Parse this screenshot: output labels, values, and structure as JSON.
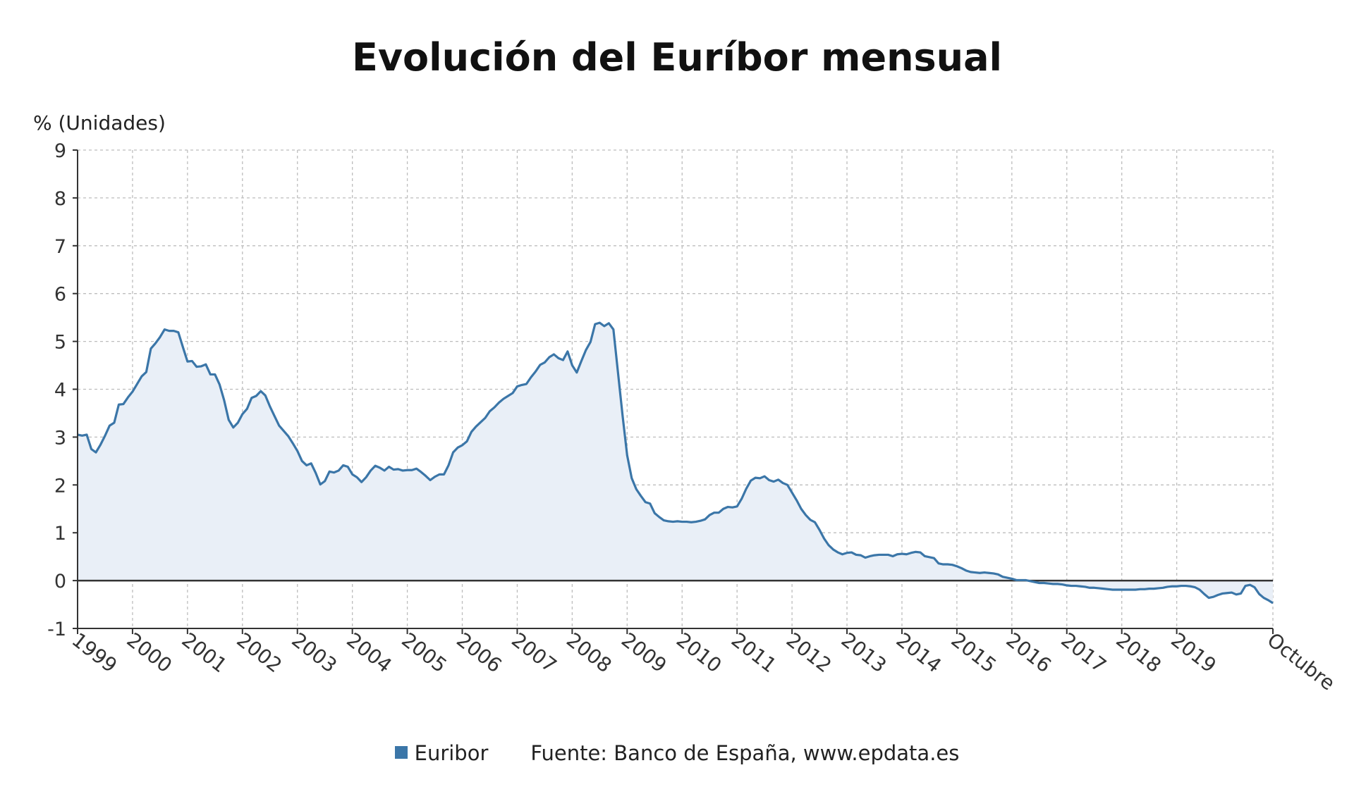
{
  "chart_data": {
    "type": "area",
    "title": "Evolución del Euríbor mensual",
    "ylabel": "% (Unidades)",
    "xlabel": "",
    "ylim": [
      -1,
      9
    ],
    "yticks": [
      "9",
      "8",
      "7",
      "6",
      "5",
      "4",
      "3",
      "2",
      "1",
      "0",
      "-1"
    ],
    "xticks": [
      "1999",
      "2000",
      "2001",
      "2002",
      "2003",
      "2004",
      "2005",
      "2006",
      "2007",
      "2008",
      "2009",
      "2010",
      "2011",
      "2012",
      "2013",
      "2014",
      "2015",
      "2016",
      "2017",
      "2018",
      "2019",
      "Octubre"
    ],
    "xlim": [
      "1999-01",
      "2020-10"
    ],
    "grid": true,
    "legend_position": "bottom",
    "source": "Fuente: Banco de España, www.epdata.es",
    "colors": {
      "line": "#3b76a8",
      "fill": "#e9eff7"
    },
    "series": [
      {
        "name": "Euribor",
        "x": [
          "1999-01",
          "1999-02",
          "1999-03",
          "1999-04",
          "1999-05",
          "1999-06",
          "1999-07",
          "1999-08",
          "1999-09",
          "1999-10",
          "1999-11",
          "1999-12",
          "2000-01",
          "2000-02",
          "2000-03",
          "2000-04",
          "2000-05",
          "2000-06",
          "2000-07",
          "2000-08",
          "2000-09",
          "2000-10",
          "2000-11",
          "2000-12",
          "2001-01",
          "2001-02",
          "2001-03",
          "2001-04",
          "2001-05",
          "2001-06",
          "2001-07",
          "2001-08",
          "2001-09",
          "2001-10",
          "2001-11",
          "2001-12",
          "2002-01",
          "2002-02",
          "2002-03",
          "2002-04",
          "2002-05",
          "2002-06",
          "2002-07",
          "2002-08",
          "2002-09",
          "2002-10",
          "2002-11",
          "2002-12",
          "2003-01",
          "2003-02",
          "2003-03",
          "2003-04",
          "2003-05",
          "2003-06",
          "2003-07",
          "2003-08",
          "2003-09",
          "2003-10",
          "2003-11",
          "2003-12",
          "2004-01",
          "2004-02",
          "2004-03",
          "2004-04",
          "2004-05",
          "2004-06",
          "2004-07",
          "2004-08",
          "2004-09",
          "2004-10",
          "2004-11",
          "2004-12",
          "2005-01",
          "2005-02",
          "2005-03",
          "2005-04",
          "2005-05",
          "2005-06",
          "2005-07",
          "2005-08",
          "2005-09",
          "2005-10",
          "2005-11",
          "2005-12",
          "2006-01",
          "2006-02",
          "2006-03",
          "2006-04",
          "2006-05",
          "2006-06",
          "2006-07",
          "2006-08",
          "2006-09",
          "2006-10",
          "2006-11",
          "2006-12",
          "2007-01",
          "2007-02",
          "2007-03",
          "2007-04",
          "2007-05",
          "2007-06",
          "2007-07",
          "2007-08",
          "2007-09",
          "2007-10",
          "2007-11",
          "2007-12",
          "2008-01",
          "2008-02",
          "2008-03",
          "2008-04",
          "2008-05",
          "2008-06",
          "2008-07",
          "2008-08",
          "2008-09",
          "2008-10",
          "2008-11",
          "2008-12",
          "2009-01",
          "2009-02",
          "2009-03",
          "2009-04",
          "2009-05",
          "2009-06",
          "2009-07",
          "2009-08",
          "2009-09",
          "2009-10",
          "2009-11",
          "2009-12",
          "2010-01",
          "2010-02",
          "2010-03",
          "2010-04",
          "2010-05",
          "2010-06",
          "2010-07",
          "2010-08",
          "2010-09",
          "2010-10",
          "2010-11",
          "2010-12",
          "2011-01",
          "2011-02",
          "2011-03",
          "2011-04",
          "2011-05",
          "2011-06",
          "2011-07",
          "2011-08",
          "2011-09",
          "2011-10",
          "2011-11",
          "2011-12",
          "2012-01",
          "2012-02",
          "2012-03",
          "2012-04",
          "2012-05",
          "2012-06",
          "2012-07",
          "2012-08",
          "2012-09",
          "2012-10",
          "2012-11",
          "2012-12",
          "2013-01",
          "2013-02",
          "2013-03",
          "2013-04",
          "2013-05",
          "2013-06",
          "2013-07",
          "2013-08",
          "2013-09",
          "2013-10",
          "2013-11",
          "2013-12",
          "2014-01",
          "2014-02",
          "2014-03",
          "2014-04",
          "2014-05",
          "2014-06",
          "2014-07",
          "2014-08",
          "2014-09",
          "2014-10",
          "2014-11",
          "2014-12",
          "2015-01",
          "2015-02",
          "2015-03",
          "2015-04",
          "2015-05",
          "2015-06",
          "2015-07",
          "2015-08",
          "2015-09",
          "2015-10",
          "2015-11",
          "2015-12",
          "2016-01",
          "2016-02",
          "2016-03",
          "2016-04",
          "2016-05",
          "2016-06",
          "2016-07",
          "2016-08",
          "2016-09",
          "2016-10",
          "2016-11",
          "2016-12",
          "2017-01",
          "2017-02",
          "2017-03",
          "2017-04",
          "2017-05",
          "2017-06",
          "2017-07",
          "2017-08",
          "2017-09",
          "2017-10",
          "2017-11",
          "2017-12",
          "2018-01",
          "2018-02",
          "2018-03",
          "2018-04",
          "2018-05",
          "2018-06",
          "2018-07",
          "2018-08",
          "2018-09",
          "2018-10",
          "2018-11",
          "2018-12",
          "2019-01",
          "2019-02",
          "2019-03",
          "2019-04",
          "2019-05",
          "2019-06",
          "2019-07",
          "2019-08",
          "2019-09",
          "2019-10",
          "2019-11",
          "2019-12",
          "2020-01",
          "2020-02",
          "2020-03",
          "2020-04",
          "2020-05",
          "2020-06",
          "2020-07",
          "2020-08",
          "2020-09",
          "2020-10"
        ],
        "values": [
          3.05,
          3.03,
          3.05,
          2.75,
          2.68,
          2.84,
          3.03,
          3.24,
          3.3,
          3.68,
          3.69,
          3.83,
          3.95,
          4.11,
          4.27,
          4.36,
          4.85,
          4.96,
          5.09,
          5.25,
          5.22,
          5.22,
          5.19,
          4.88,
          4.58,
          4.59,
          4.47,
          4.48,
          4.52,
          4.31,
          4.31,
          4.1,
          3.77,
          3.36,
          3.2,
          3.3,
          3.48,
          3.59,
          3.82,
          3.86,
          3.96,
          3.87,
          3.64,
          3.44,
          3.24,
          3.13,
          3.02,
          2.87,
          2.71,
          2.5,
          2.41,
          2.45,
          2.25,
          2.01,
          2.08,
          2.28,
          2.26,
          2.3,
          2.41,
          2.38,
          2.22,
          2.16,
          2.06,
          2.16,
          2.3,
          2.4,
          2.36,
          2.3,
          2.38,
          2.32,
          2.33,
          2.3,
          2.31,
          2.31,
          2.34,
          2.27,
          2.19,
          2.1,
          2.17,
          2.22,
          2.22,
          2.41,
          2.68,
          2.78,
          2.83,
          2.91,
          3.11,
          3.22,
          3.31,
          3.4,
          3.54,
          3.62,
          3.72,
          3.8,
          3.86,
          3.92,
          4.06,
          4.09,
          4.11,
          4.25,
          4.37,
          4.51,
          4.56,
          4.67,
          4.73,
          4.65,
          4.61,
          4.79,
          4.5,
          4.35,
          4.59,
          4.82,
          4.99,
          5.36,
          5.39,
          5.32,
          5.38,
          5.25,
          4.35,
          3.45,
          2.62,
          2.14,
          1.91,
          1.77,
          1.64,
          1.61,
          1.41,
          1.33,
          1.26,
          1.24,
          1.23,
          1.24,
          1.23,
          1.23,
          1.22,
          1.23,
          1.25,
          1.28,
          1.37,
          1.42,
          1.42,
          1.5,
          1.54,
          1.53,
          1.55,
          1.71,
          1.92,
          2.09,
          2.15,
          2.14,
          2.18,
          2.1,
          2.07,
          2.11,
          2.04,
          2.0,
          1.84,
          1.68,
          1.5,
          1.37,
          1.27,
          1.22,
          1.06,
          0.88,
          0.74,
          0.65,
          0.59,
          0.55,
          0.58,
          0.59,
          0.54,
          0.53,
          0.48,
          0.51,
          0.53,
          0.54,
          0.54,
          0.54,
          0.51,
          0.55,
          0.56,
          0.55,
          0.58,
          0.6,
          0.59,
          0.51,
          0.49,
          0.47,
          0.36,
          0.34,
          0.34,
          0.33,
          0.3,
          0.26,
          0.21,
          0.18,
          0.17,
          0.16,
          0.17,
          0.16,
          0.15,
          0.13,
          0.08,
          0.06,
          0.04,
          0.01,
          0.01,
          0.01,
          -0.01,
          -0.03,
          -0.05,
          -0.05,
          -0.06,
          -0.07,
          -0.07,
          -0.08,
          -0.1,
          -0.11,
          -0.11,
          -0.12,
          -0.13,
          -0.15,
          -0.15,
          -0.16,
          -0.17,
          -0.18,
          -0.19,
          -0.19,
          -0.19,
          -0.19,
          -0.19,
          -0.19,
          -0.18,
          -0.18,
          -0.17,
          -0.17,
          -0.16,
          -0.15,
          -0.13,
          -0.12,
          -0.12,
          -0.11,
          -0.11,
          -0.12,
          -0.14,
          -0.19,
          -0.28,
          -0.36,
          -0.34,
          -0.3,
          -0.27,
          -0.26,
          -0.25,
          -0.29,
          -0.27,
          -0.11,
          -0.09,
          -0.14,
          -0.28,
          -0.36,
          -0.41,
          -0.47
        ]
      }
    ]
  }
}
